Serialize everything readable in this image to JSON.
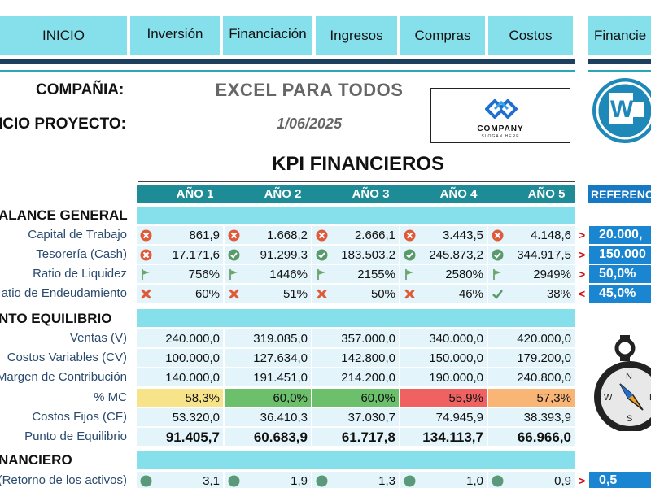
{
  "nav": {
    "tabs": [
      "INICIO",
      "Inversión",
      "Financiación",
      "Ingresos",
      "Compras",
      "Costos",
      "Financie"
    ]
  },
  "header": {
    "company_label": "COMPAÑIA:",
    "company_name": "EXCEL PARA TODOS",
    "start_label": "ICIO PROYECTO:",
    "start_date": "1/06/2025",
    "logo_text": "COMPANY",
    "logo_sub": "SLOGAN HERE"
  },
  "kpi": {
    "title": "KPI FINANCIEROS",
    "years": [
      "AÑO 1",
      "AÑO 2",
      "AÑO 3",
      "AÑO 4",
      "AÑO 5"
    ],
    "reference_header": "REFERENC"
  },
  "sections": {
    "balance": "ALANCE GENERAL",
    "equilibrio": "NTO EQUILIBRIO",
    "financiero": "NANCIERO"
  },
  "balance_rows": [
    {
      "label": "Capital de Trabajo",
      "values": [
        "861,9",
        "1.668,2",
        "2.666,1",
        "3.443,5",
        "4.148,6"
      ],
      "icons": [
        "x-circle",
        "x-circle",
        "x-circle",
        "x-circle",
        "x-circle"
      ],
      "cmp": ">",
      "ref": "20.000,"
    },
    {
      "label": "Tesorería (Cash)",
      "values": [
        "17.171,6",
        "91.299,3",
        "183.503,2",
        "245.873,2",
        "344.917,5"
      ],
      "icons": [
        "x-circle",
        "check-circle",
        "check-circle",
        "check-circle",
        "check-circle"
      ],
      "cmp": ">",
      "ref": "150.000"
    },
    {
      "label": "Ratio de Liquidez",
      "values": [
        "756%",
        "1446%",
        "2155%",
        "2580%",
        "2949%"
      ],
      "icons": [
        "flag",
        "flag",
        "flag",
        "flag",
        "flag"
      ],
      "cmp": ">",
      "ref": "50,0%"
    },
    {
      "label": "atio de Endeudamiento",
      "values": [
        "60%",
        "51%",
        "50%",
        "46%",
        "38%"
      ],
      "icons": [
        "x-mark",
        "x-mark",
        "x-mark",
        "x-mark",
        "check-mark"
      ],
      "cmp": "<",
      "ref": "45,0%"
    }
  ],
  "equilibrio_rows": [
    {
      "label": "Ventas (V)",
      "values": [
        "240.000,0",
        "319.085,0",
        "357.000,0",
        "340.000,0",
        "420.000,0"
      ]
    },
    {
      "label": "Costos Variables (CV)",
      "values": [
        "100.000,0",
        "127.634,0",
        "142.800,0",
        "150.000,0",
        "179.200,0"
      ]
    },
    {
      "label": "Margen de Contribución",
      "values": [
        "140.000,0",
        "191.451,0",
        "214.200,0",
        "190.000,0",
        "240.800,0"
      ]
    },
    {
      "label": "% MC",
      "values": [
        "58,3%",
        "60,0%",
        "60,0%",
        "55,9%",
        "57,3%"
      ],
      "colors": [
        "#f7e48a",
        "#6cc06c",
        "#6cc06c",
        "#f06262",
        "#f8b576"
      ]
    },
    {
      "label": "Costos Fijos (CF)",
      "values": [
        "53.320,0",
        "36.410,3",
        "37.030,7",
        "74.945,9",
        "38.393,9"
      ]
    },
    {
      "label": "Punto de Equilibrio",
      "values": [
        "91.405,7",
        "60.683,9",
        "61.717,8",
        "134.113,7",
        "66.966,0"
      ]
    }
  ],
  "financiero_rows": [
    {
      "label": "A (Retorno de los activos)",
      "values": [
        "3,1",
        "1,9",
        "1,3",
        "1,0",
        "0,9"
      ],
      "cmp": ">",
      "ref": "0,5"
    }
  ],
  "compass_letters": [
    "N",
    "E",
    "S",
    "W"
  ]
}
